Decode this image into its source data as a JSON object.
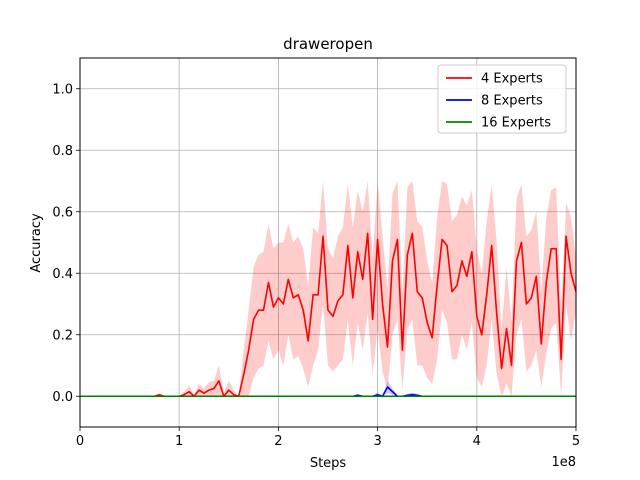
{
  "chart_data": {
    "type": "line",
    "title": "draweropen",
    "xlabel": "Steps",
    "ylabel": "Accuracy",
    "x_offset_label": "1e8",
    "xlim": [
      0,
      5
    ],
    "ylim": [
      -0.1,
      1.1
    ],
    "xticks": [
      0,
      1,
      2,
      3,
      4,
      5
    ],
    "xtick_labels": [
      "0",
      "1",
      "2",
      "3",
      "4",
      "5"
    ],
    "yticks": [
      0.0,
      0.2,
      0.4,
      0.6,
      0.8,
      1.0
    ],
    "ytick_labels": [
      "0.0",
      "0.2",
      "0.4",
      "0.6",
      "0.8",
      "1.0"
    ],
    "grid": true,
    "legend_position": "top-right",
    "series": [
      {
        "name": "4 Experts",
        "color": "#ff0000",
        "band_color": "#ff0000",
        "x": [
          0,
          0.5,
          0.7,
          0.75,
          0.8,
          0.85,
          0.9,
          1.0,
          1.05,
          1.1,
          1.15,
          1.2,
          1.25,
          1.3,
          1.35,
          1.4,
          1.45,
          1.5,
          1.55,
          1.6,
          1.65,
          1.7,
          1.75,
          1.8,
          1.85,
          1.9,
          1.95,
          2.0,
          2.05,
          2.1,
          2.15,
          2.2,
          2.25,
          2.3,
          2.35,
          2.4,
          2.45,
          2.5,
          2.55,
          2.6,
          2.65,
          2.7,
          2.75,
          2.8,
          2.85,
          2.9,
          2.95,
          3.0,
          3.05,
          3.1,
          3.15,
          3.2,
          3.25,
          3.3,
          3.35,
          3.4,
          3.45,
          3.5,
          3.55,
          3.6,
          3.65,
          3.7,
          3.75,
          3.8,
          3.85,
          3.9,
          3.95,
          4.0,
          4.05,
          4.1,
          4.15,
          4.2,
          4.25,
          4.3,
          4.35,
          4.4,
          4.45,
          4.5,
          4.55,
          4.6,
          4.65,
          4.7,
          4.75,
          4.8,
          4.85,
          4.9,
          4.95,
          5.0
        ],
        "y": [
          0,
          0,
          0,
          0,
          0.005,
          0,
          0,
          0,
          0.005,
          0.015,
          0,
          0.02,
          0.01,
          0.02,
          0.025,
          0.05,
          0,
          0.02,
          0.005,
          0,
          0.07,
          0.15,
          0.25,
          0.28,
          0.28,
          0.37,
          0.29,
          0.32,
          0.3,
          0.38,
          0.32,
          0.33,
          0.28,
          0.18,
          0.33,
          0.33,
          0.52,
          0.28,
          0.26,
          0.31,
          0.33,
          0.49,
          0.32,
          0.47,
          0.38,
          0.53,
          0.25,
          0.51,
          0.3,
          0.16,
          0.44,
          0.51,
          0.15,
          0.46,
          0.53,
          0.34,
          0.32,
          0.24,
          0.19,
          0.36,
          0.51,
          0.49,
          0.34,
          0.36,
          0.44,
          0.39,
          0.47,
          0.26,
          0.2,
          0.33,
          0.49,
          0.27,
          0.09,
          0.22,
          0.1,
          0.44,
          0.5,
          0.3,
          0.32,
          0.39,
          0.17,
          0.37,
          0.48,
          0.48,
          0.12,
          0.52,
          0.4,
          0.34
        ],
        "lower": [
          0,
          0,
          0,
          0,
          0,
          0,
          0,
          0,
          0,
          0,
          0,
          0,
          0,
          0,
          0,
          0,
          0,
          0,
          0,
          0,
          0,
          0,
          0.06,
          0.09,
          0.1,
          0.18,
          0.12,
          0.15,
          0.1,
          0.2,
          0.12,
          0.13,
          0.09,
          0.03,
          0.1,
          0.15,
          0.3,
          0.1,
          0.08,
          0.1,
          0.12,
          0.25,
          0.1,
          0.24,
          0.15,
          0.27,
          0.07,
          0.22,
          0.08,
          0.02,
          0.2,
          0.25,
          0.02,
          0.22,
          0.25,
          0.1,
          0.1,
          0.06,
          0.04,
          0.12,
          0.28,
          0.24,
          0.12,
          0.12,
          0.2,
          0.15,
          0.24,
          0.06,
          0.03,
          0.1,
          0.25,
          0.07,
          0.0,
          0.04,
          0.0,
          0.2,
          0.25,
          0.08,
          0.1,
          0.15,
          0.03,
          0.14,
          0.22,
          0.24,
          0.0,
          0.3,
          0.18,
          0.28
        ],
        "upper": [
          0,
          0,
          0,
          0,
          0.01,
          0,
          0,
          0,
          0.015,
          0.035,
          0.005,
          0.04,
          0.025,
          0.045,
          0.05,
          0.1,
          0.01,
          0.05,
          0.02,
          0,
          0.15,
          0.28,
          0.42,
          0.46,
          0.47,
          0.56,
          0.48,
          0.5,
          0.5,
          0.56,
          0.5,
          0.52,
          0.48,
          0.36,
          0.55,
          0.53,
          0.7,
          0.48,
          0.45,
          0.52,
          0.55,
          0.69,
          0.55,
          0.67,
          0.6,
          0.7,
          0.45,
          0.7,
          0.52,
          0.35,
          0.66,
          0.7,
          0.33,
          0.68,
          0.7,
          0.57,
          0.55,
          0.44,
          0.37,
          0.58,
          0.7,
          0.69,
          0.57,
          0.59,
          0.65,
          0.62,
          0.67,
          0.48,
          0.4,
          0.57,
          0.69,
          0.5,
          0.22,
          0.42,
          0.24,
          0.64,
          0.69,
          0.52,
          0.54,
          0.6,
          0.35,
          0.58,
          0.67,
          0.68,
          0.28,
          0.63,
          0.58,
          0.45
        ]
      },
      {
        "name": "8 Experts",
        "color": "#0000ff",
        "band_color": "#0000ff",
        "x": [
          0,
          2.7,
          2.75,
          2.8,
          2.85,
          2.9,
          2.95,
          3.0,
          3.05,
          3.1,
          3.15,
          3.2,
          3.25,
          3.3,
          3.35,
          3.4,
          3.45,
          5.0
        ],
        "y": [
          0,
          0,
          0,
          0.003,
          0,
          0,
          0,
          0.005,
          0,
          0.03,
          0.015,
          0,
          0,
          0.003,
          0.005,
          0.003,
          0,
          0
        ],
        "lower": [
          0,
          0,
          0,
          0,
          0,
          0,
          0,
          0,
          0,
          0.01,
          0.005,
          0,
          0,
          0,
          0,
          0,
          0,
          0
        ],
        "upper": [
          0,
          0,
          0,
          0.008,
          0,
          0,
          0,
          0.012,
          0,
          0.05,
          0.025,
          0,
          0,
          0.008,
          0.012,
          0.008,
          0,
          0
        ]
      },
      {
        "name": "16 Experts",
        "color": "#008000",
        "band_color": "#008000",
        "x": [
          0,
          5.0
        ],
        "y": [
          0,
          0
        ],
        "lower": [
          0,
          0
        ],
        "upper": [
          0,
          0
        ]
      }
    ]
  }
}
